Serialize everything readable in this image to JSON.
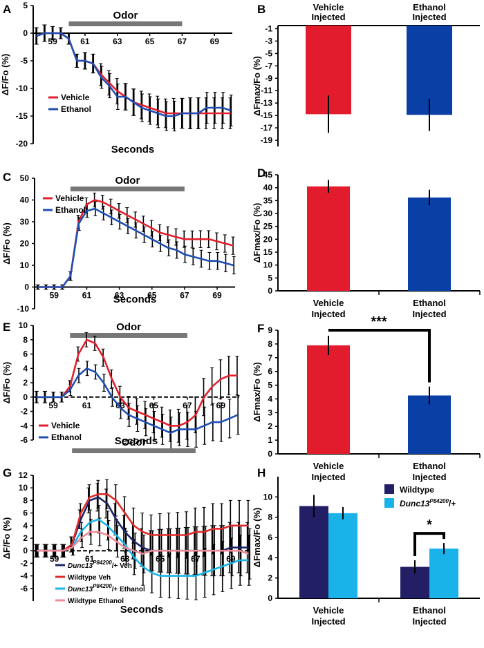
{
  "colors": {
    "vehicle": "#e21f2c",
    "ethanol": "#1f4fb4",
    "bar_vehicle": "#e21c2c",
    "bar_ethanol": "#0a3fa6",
    "wildtype_veh": "#e02a2a",
    "dunc_veh": "#1b2466",
    "dunc_eth": "#1ab4e8",
    "wildtype_eth": "#f08a98",
    "bar_wildtype": "#231f66",
    "bar_dunc": "#19b3ea",
    "odor_bar": "#777777"
  },
  "chart_data": [
    {
      "panel": "A",
      "type": "line",
      "xlabel": "Seconds",
      "ylabel": "ΔF/Fo (%)",
      "xlim": [
        57.8,
        70.1
      ],
      "ylim": [
        -20,
        5
      ],
      "xticks": [
        "59",
        "61",
        "63",
        "65",
        "67",
        "69"
      ],
      "yticks": [
        "5",
        "0",
        "-5",
        "-10",
        "-15",
        "-20"
      ],
      "odor_label": "Odor",
      "odor_range": [
        60,
        67
      ],
      "legend": [
        "Vehicle",
        "Ethanol"
      ],
      "x": [
        58,
        58.5,
        59,
        59.5,
        60,
        60.5,
        61,
        61.5,
        62,
        62.5,
        63,
        63.5,
        64,
        64.5,
        65,
        65.5,
        66,
        66.5,
        67,
        67.5,
        68,
        68.5,
        69,
        69.5,
        70
      ],
      "series": [
        {
          "name": "Vehicle",
          "values": [
            -0.5,
            0,
            0,
            0,
            -1,
            -5,
            -5,
            -5.5,
            -7.5,
            -9,
            -10.5,
            -11.5,
            -12.5,
            -13,
            -13.5,
            -14,
            -14.5,
            -14.5,
            -14.5,
            -14.5,
            -14.5,
            -14.5,
            -14.5,
            -14.5,
            -14.5
          ],
          "error": [
            1.5,
            1.5,
            1.2,
            1,
            1,
            1.2,
            1.5,
            1.7,
            2,
            2.2,
            2.3,
            2.4,
            2.4,
            2.5,
            2.5,
            2.6,
            2.6,
            2.7,
            2.7,
            2.8,
            2.8,
            2.8,
            2.8,
            2.8,
            2.8
          ]
        },
        {
          "name": "Ethanol",
          "values": [
            -0.5,
            0,
            0,
            0,
            -1,
            -5,
            -5,
            -5.5,
            -8,
            -9.5,
            -11.5,
            -11.5,
            -12.5,
            -13.5,
            -14,
            -14.5,
            -15,
            -15,
            -14.5,
            -14.5,
            -14.5,
            -13.5,
            -13.5,
            -13.5,
            -14
          ],
          "error": [
            1.5,
            1.5,
            1.2,
            1,
            1,
            1.2,
            1.5,
            1.7,
            2,
            2.2,
            2.3,
            2.4,
            2.4,
            2.5,
            2.5,
            2.6,
            2.6,
            2.7,
            2.7,
            2.8,
            2.8,
            2.8,
            2.8,
            2.8,
            2.8
          ]
        }
      ]
    },
    {
      "panel": "B",
      "type": "bar",
      "ylabel": "ΔFmax/Fo (%)",
      "ylim": [
        -20,
        -0.5
      ],
      "yticks": [
        "-1",
        "-3",
        "-5",
        "-7",
        "-9",
        "-11",
        "-13",
        "-15",
        "-17",
        "-19"
      ],
      "categories": [
        "Vehicle Injected",
        "Ethanol Injected"
      ],
      "values": [
        -14.8,
        -14.9
      ],
      "error": [
        3.0,
        2.6
      ]
    },
    {
      "panel": "C",
      "type": "line",
      "xlabel": "Seconds",
      "ylabel": "ΔF/Fo (%)",
      "xlim": [
        57.8,
        70.1
      ],
      "ylim": [
        -10,
        50
      ],
      "xticks": [
        "59",
        "61",
        "63",
        "65",
        "67",
        "69"
      ],
      "yticks": [
        "50",
        "40",
        "30",
        "20",
        "10",
        "0",
        "-10"
      ],
      "odor_label": "Odor",
      "odor_range": [
        60,
        67
      ],
      "legend": [
        "Vehicle",
        "Ethanol"
      ],
      "x": [
        58,
        58.5,
        59,
        59.5,
        60,
        60.5,
        61,
        61.5,
        62,
        62.5,
        63,
        63.5,
        64,
        64.5,
        65,
        65.5,
        66,
        66.5,
        67,
        67.5,
        68,
        68.5,
        69,
        69.5,
        70
      ],
      "series": [
        {
          "name": "Vehicle",
          "values": [
            0,
            0,
            0,
            0,
            5,
            30,
            38,
            40,
            39,
            37,
            35,
            33,
            31,
            29,
            27,
            25,
            24,
            23,
            22,
            22,
            22,
            22,
            21,
            20,
            19
          ],
          "error": [
            1,
            1,
            1,
            1,
            2,
            3,
            3,
            3.2,
            3.2,
            3.4,
            3.4,
            3.5,
            3.5,
            3.6,
            3.6,
            3.7,
            3.7,
            3.8,
            3.8,
            3.8,
            3.9,
            3.9,
            3.9,
            4,
            4
          ]
        },
        {
          "name": "Ethanol",
          "values": [
            0,
            0,
            0,
            0,
            5,
            29,
            35,
            36,
            34,
            32,
            30,
            28,
            26,
            24,
            22,
            20,
            18,
            17,
            15,
            14,
            13,
            12,
            12,
            11,
            10
          ],
          "error": [
            1,
            1,
            1,
            1,
            2,
            3,
            3,
            3.2,
            3.2,
            3.4,
            3.4,
            3.5,
            3.5,
            3.6,
            3.6,
            3.7,
            3.7,
            3.8,
            3.8,
            3.8,
            3.9,
            3.9,
            3.9,
            4,
            4
          ]
        }
      ]
    },
    {
      "panel": "D",
      "type": "bar",
      "ylabel": "ΔFmax/Fo (%)",
      "ylim": [
        0,
        45
      ],
      "yticks": [
        "45",
        "40",
        "35",
        "30",
        "25",
        "20",
        "15",
        "10",
        "5",
        "0"
      ],
      "categories": [
        "Vehicle Injected",
        "Ethanol Injected"
      ],
      "values": [
        40.5,
        36.2
      ],
      "error": [
        2.5,
        3.0
      ]
    },
    {
      "panel": "E",
      "type": "line",
      "xlabel": "Seconds",
      "ylabel": "ΔF/Fo (%)",
      "xlim": [
        57.8,
        70.1
      ],
      "ylim": [
        -6,
        10
      ],
      "xticks": [
        "59",
        "61",
        "63",
        "65",
        "67",
        "69"
      ],
      "yticks": [
        "10",
        "8",
        "6",
        "4",
        "2",
        "0",
        "-2",
        "-4",
        "-6"
      ],
      "odor_label": "Odor",
      "odor_range": [
        60,
        67
      ],
      "legend": [
        "Vehicle",
        "Ethanol"
      ],
      "x": [
        58,
        58.5,
        59,
        59.5,
        60,
        60.5,
        61,
        61.5,
        62,
        62.5,
        63,
        63.5,
        64,
        64.5,
        65,
        65.5,
        66,
        66.5,
        67,
        67.5,
        68,
        68.5,
        69,
        69.5,
        70
      ],
      "series": [
        {
          "name": "Vehicle",
          "values": [
            0,
            0,
            0,
            0,
            1.5,
            6,
            8,
            7.5,
            5.5,
            2.5,
            0,
            -1.5,
            -2,
            -2.5,
            -3,
            -3.5,
            -4,
            -4,
            -3.5,
            -2.5,
            0,
            1.5,
            2.5,
            3,
            3
          ],
          "error": [
            0.8,
            0.8,
            0.7,
            0.7,
            0.8,
            1,
            1,
            1,
            1.2,
            1.3,
            1.5,
            1.6,
            1.8,
            1.9,
            2,
            2.1,
            2.2,
            2.3,
            2.4,
            2.5,
            2.6,
            2.6,
            2.7,
            2.7,
            2.7
          ]
        },
        {
          "name": "Ethanol",
          "values": [
            0,
            0,
            0,
            0,
            1,
            3,
            4,
            3.5,
            2,
            0,
            -1.5,
            -2.5,
            -3,
            -3.5,
            -4,
            -4.5,
            -5,
            -4.5,
            -4.5,
            -4.5,
            -4,
            -3.5,
            -3.5,
            -3,
            -2.5
          ],
          "error": [
            0.8,
            0.8,
            0.7,
            0.7,
            0.8,
            1,
            1,
            1,
            1.2,
            1.3,
            1.5,
            1.6,
            1.8,
            1.9,
            2,
            2.1,
            2.2,
            2.3,
            2.4,
            2.5,
            2.6,
            2.6,
            2.7,
            2.7,
            2.7
          ]
        }
      ]
    },
    {
      "panel": "F",
      "type": "bar",
      "ylabel": "ΔFmax/Fo (%)",
      "ylim": [
        0,
        9
      ],
      "yticks": [
        "9",
        "8",
        "7",
        "6",
        "5",
        "4",
        "3",
        "2",
        "1",
        "0"
      ],
      "categories": [
        "Vehicle Injected",
        "Ethanol Injected"
      ],
      "values": [
        7.9,
        4.25
      ],
      "error": [
        0.7,
        0.65
      ],
      "significance": "***"
    },
    {
      "panel": "G",
      "type": "line",
      "xlabel": "Seconds",
      "ylabel": "ΔF/Fo (%)",
      "xlim": [
        57.8,
        70.1
      ],
      "ylim": [
        -8,
        12
      ],
      "xticks": [
        "59",
        "61",
        "63",
        "65",
        "67",
        "69"
      ],
      "yticks": [
        "12",
        "10",
        "8",
        "6",
        "4",
        "2",
        "0",
        "-2",
        "-4",
        "-6"
      ],
      "odor_label": "Odor",
      "odor_range": [
        60,
        67
      ],
      "x": [
        58,
        58.5,
        59,
        59.5,
        60,
        60.5,
        61,
        61.5,
        62,
        62.5,
        63,
        63.5,
        64,
        64.5,
        65,
        65.5,
        66,
        66.5,
        67,
        67.5,
        68,
        68.5,
        69,
        69.5,
        70
      ],
      "series": [
        {
          "name": "Veh",
          "values": [
            0,
            0,
            0,
            0,
            1,
            5,
            8,
            8.5,
            7.5,
            5,
            3,
            1.5,
            0.5,
            0,
            0,
            0,
            0,
            0,
            0,
            0,
            0,
            0,
            0.5,
            0.5,
            0.5
          ],
          "error": [
            1,
            1,
            1,
            1,
            1.2,
            1.5,
            2,
            2.2,
            2.3,
            2.5,
            2.6,
            2.8,
            3,
            3.2,
            3.4,
            3.5,
            3.6,
            3.7,
            3.8,
            3.9,
            4,
            4,
            4,
            4,
            4
          ]
        },
        {
          "name": "Wildtype Veh",
          "values": [
            0,
            0,
            0,
            0,
            1,
            6,
            8.5,
            9,
            9,
            8,
            6,
            4,
            3,
            2.5,
            2.5,
            2.5,
            2.5,
            2.5,
            3,
            3,
            3.5,
            3.5,
            4,
            4,
            4
          ],
          "error": [
            1,
            1,
            1,
            1,
            1.2,
            1.5,
            2,
            2.2,
            2.3,
            2.5,
            2.6,
            2.8,
            3,
            3.2,
            3.4,
            3.5,
            3.6,
            3.7,
            3.8,
            3.9,
            4,
            4,
            4,
            4,
            4
          ]
        },
        {
          "name": "Ethanol",
          "values": [
            0,
            0,
            0,
            0,
            0.5,
            3,
            4.5,
            5,
            4,
            2.5,
            1,
            -1,
            -2.5,
            -3.5,
            -4,
            -4,
            -4,
            -4,
            -4,
            -3.5,
            -3,
            -2.5,
            -2,
            -1.5,
            -1.5
          ],
          "error": [
            1,
            1,
            1,
            1,
            1.2,
            1.5,
            2,
            2.2,
            2.3,
            2.5,
            2.6,
            2.8,
            3,
            3.2,
            3.4,
            3.5,
            3.6,
            3.7,
            3.8,
            3.9,
            4,
            4,
            4,
            4,
            4
          ]
        },
        {
          "name": "Wildtype Ethanol",
          "values": [
            0,
            0,
            0,
            0,
            0.5,
            2,
            3,
            3,
            2.5,
            1.5,
            0.5,
            0,
            -0.5,
            0,
            0,
            0,
            0,
            0,
            0,
            0,
            0,
            0,
            0,
            0,
            -0.5
          ],
          "error": [
            1,
            1,
            1,
            1,
            1.2,
            1.5,
            2,
            2.2,
            2.3,
            2.5,
            2.6,
            2.8,
            3,
            3.2,
            3.4,
            3.5,
            3.6,
            3.7,
            3.8,
            3.9,
            4,
            4,
            4,
            4,
            4
          ]
        }
      ],
      "legend": [
        {
          "base": "Dunc13",
          "sup": "P84200",
          "rest": "/+  Veh"
        },
        {
          "base": "Wildtype  Veh",
          "sup": "",
          "rest": ""
        },
        {
          "base": "Dunc13",
          "sup": "P84200",
          "rest": "/+  Ethanol"
        },
        {
          "base": "Wildtype Ethanol",
          "sup": "",
          "rest": ""
        }
      ]
    },
    {
      "panel": "H",
      "type": "bar",
      "ylabel": "ΔFmax/Fo (%)",
      "ylim": [
        0,
        12
      ],
      "yticks": [
        "10",
        "8",
        "6",
        "4",
        "2",
        "0"
      ],
      "categories": [
        "Vehicle Injected",
        "Ethanol Injected"
      ],
      "series": [
        {
          "name": "Wildtype",
          "values": [
            9.1,
            3.1
          ],
          "error": [
            1.1,
            0.65
          ]
        },
        {
          "name": "Dunc13",
          "sup": "P84200",
          "rest": "/+",
          "values": [
            8.4,
            4.9
          ],
          "error": [
            0.6,
            0.55
          ]
        }
      ],
      "significance": "*"
    }
  ]
}
